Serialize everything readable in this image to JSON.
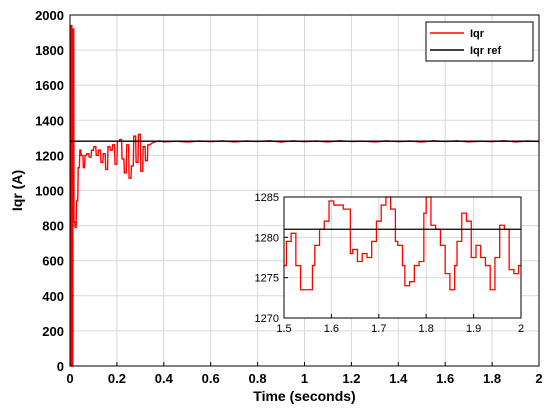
{
  "chart_data": [
    {
      "type": "line",
      "title": "",
      "xlabel": "Time (seconds)",
      "ylabel": "Iqr (A)",
      "xlim": [
        0,
        2
      ],
      "ylim": [
        0,
        2000
      ],
      "xticks": [
        "0",
        "0.2",
        "0.4",
        "0.6",
        "0.8",
        "1",
        "1.2",
        "1.4",
        "1.6",
        "1.8",
        "2"
      ],
      "yticks": [
        "0",
        "200",
        "400",
        "600",
        "800",
        "1000",
        "1200",
        "1400",
        "1600",
        "1800",
        "2000"
      ],
      "grid": true,
      "legend_position": "top-right",
      "series": [
        {
          "name": "Iqr",
          "color": "#ff0000",
          "x": [
            0.0,
            0.003,
            0.004,
            0.008,
            0.009,
            0.012,
            0.013,
            0.016,
            0.017,
            0.021,
            0.022,
            0.026,
            0.028,
            0.033,
            0.035,
            0.04,
            0.042,
            0.046,
            0.048,
            0.055,
            0.057,
            0.062,
            0.064,
            0.07,
            0.072,
            0.08,
            0.082,
            0.09,
            0.092,
            0.1,
            0.102,
            0.11,
            0.112,
            0.12,
            0.122,
            0.13,
            0.132,
            0.14,
            0.142,
            0.15,
            0.152,
            0.16,
            0.162,
            0.17,
            0.172,
            0.18,
            0.182,
            0.19,
            0.192,
            0.2,
            0.202,
            0.21,
            0.212,
            0.22,
            0.222,
            0.23,
            0.232,
            0.24,
            0.242,
            0.25,
            0.252,
            0.26,
            0.262,
            0.27,
            0.272,
            0.28,
            0.282,
            0.29,
            0.292,
            0.3,
            0.302,
            0.31,
            0.312,
            0.32,
            0.322,
            0.33,
            0.332,
            0.34,
            0.35,
            0.36,
            0.38,
            0.4,
            0.45,
            0.5,
            0.55,
            0.6,
            0.65,
            0.7,
            0.75,
            0.8,
            0.85,
            0.9,
            0.95,
            1.0,
            1.05,
            1.1,
            1.15,
            1.2,
            1.25,
            1.3,
            1.35,
            1.4,
            1.45,
            1.5,
            1.55,
            1.6,
            1.65,
            1.7,
            1.75,
            1.8,
            1.85,
            1.9,
            1.95,
            2.0
          ],
          "y": [
            0,
            0,
            1940,
            1940,
            0,
            0,
            1920,
            1920,
            820,
            820,
            790,
            790,
            940,
            940,
            1130,
            1130,
            1230,
            1230,
            1200,
            1200,
            1130,
            1130,
            1200,
            1200,
            1210,
            1210,
            1190,
            1190,
            1230,
            1230,
            1250,
            1250,
            1200,
            1200,
            1230,
            1230,
            1160,
            1160,
            1210,
            1210,
            1120,
            1120,
            1250,
            1250,
            1230,
            1230,
            1260,
            1260,
            1150,
            1150,
            1280,
            1280,
            1290,
            1290,
            1180,
            1180,
            1100,
            1100,
            1260,
            1260,
            1070,
            1070,
            1140,
            1140,
            1310,
            1310,
            1160,
            1160,
            1320,
            1320,
            1110,
            1110,
            1250,
            1250,
            1170,
            1170,
            1260,
            1260,
            1270,
            1276,
            1283,
            1277,
            1281,
            1276,
            1282,
            1278,
            1283,
            1277,
            1282,
            1279,
            1284,
            1276,
            1283,
            1278,
            1282,
            1277,
            1284,
            1279,
            1281,
            1277,
            1283,
            1278,
            1282,
            1276,
            1284,
            1279,
            1283,
            1277,
            1281,
            1278,
            1284,
            1277,
            1282,
            1279
          ]
        },
        {
          "name": "Iqr ref",
          "color": "#000000",
          "x": [
            0,
            2
          ],
          "y": [
            1281,
            1281
          ]
        }
      ]
    },
    {
      "type": "line",
      "title": "",
      "xlabel": "",
      "ylabel": "",
      "xlim": [
        1.5,
        2
      ],
      "ylim": [
        1270,
        1285
      ],
      "xticks": [
        "1.5",
        "1.6",
        "1.7",
        "1.8",
        "1.9",
        "2"
      ],
      "yticks": [
        "1270",
        "1275",
        "1280",
        "1285"
      ],
      "grid": true,
      "series": [
        {
          "name": "Iqr",
          "color": "#ff0000",
          "x": [
            1.5,
            1.505,
            1.505,
            1.515,
            1.515,
            1.525,
            1.525,
            1.535,
            1.535,
            1.545,
            1.545,
            1.56,
            1.56,
            1.565,
            1.565,
            1.575,
            1.575,
            1.585,
            1.585,
            1.595,
            1.595,
            1.605,
            1.605,
            1.625,
            1.625,
            1.64,
            1.64,
            1.645,
            1.645,
            1.655,
            1.655,
            1.665,
            1.665,
            1.675,
            1.675,
            1.685,
            1.685,
            1.695,
            1.695,
            1.705,
            1.705,
            1.715,
            1.715,
            1.725,
            1.725,
            1.735,
            1.735,
            1.74,
            1.74,
            1.75,
            1.75,
            1.755,
            1.755,
            1.765,
            1.765,
            1.775,
            1.775,
            1.785,
            1.785,
            1.795,
            1.795,
            1.8,
            1.8,
            1.81,
            1.81,
            1.82,
            1.82,
            1.83,
            1.83,
            1.84,
            1.84,
            1.85,
            1.85,
            1.86,
            1.86,
            1.865,
            1.865,
            1.875,
            1.875,
            1.885,
            1.885,
            1.895,
            1.895,
            1.905,
            1.905,
            1.915,
            1.915,
            1.925,
            1.925,
            1.935,
            1.935,
            1.945,
            1.945,
            1.955,
            1.955,
            1.965,
            1.965,
            1.975,
            1.975,
            1.985,
            1.985,
            1.995,
            1.995,
            2.0
          ],
          "y": [
            1276.5,
            1276.5,
            1279.5,
            1279.5,
            1280.5,
            1280.5,
            1276.5,
            1276.5,
            1273.5,
            1273.5,
            1273.5,
            1273.5,
            1276.5,
            1276.5,
            1279,
            1279,
            1281,
            1281,
            1282,
            1282,
            1284.5,
            1284.5,
            1284,
            1284,
            1283.5,
            1283.5,
            1278,
            1278,
            1278.5,
            1278.5,
            1277,
            1277,
            1278,
            1278,
            1277.5,
            1277.5,
            1279.5,
            1279.5,
            1282,
            1282,
            1284,
            1284,
            1285,
            1285,
            1283.5,
            1283.5,
            1279.5,
            1279.5,
            1279,
            1279,
            1276.5,
            1276.5,
            1274,
            1274,
            1274.5,
            1274.5,
            1276.5,
            1276.5,
            1277,
            1277,
            1283,
            1283,
            1285,
            1285,
            1281.5,
            1281.5,
            1281,
            1281,
            1279,
            1279,
            1275.5,
            1275.5,
            1273.5,
            1273.5,
            1276.5,
            1276.5,
            1279.5,
            1279.5,
            1283,
            1283,
            1282,
            1282,
            1277.5,
            1277.5,
            1279,
            1279,
            1277.5,
            1277.5,
            1276.5,
            1276.5,
            1273.5,
            1273.5,
            1277.5,
            1277.5,
            1281.5,
            1281.5,
            1281,
            1281,
            1276,
            1276,
            1275.5,
            1275.5,
            1276.5,
            1276.5
          ]
        },
        {
          "name": "Iqr ref",
          "color": "#000000",
          "x": [
            1.5,
            2.0
          ],
          "y": [
            1281,
            1281
          ]
        }
      ]
    }
  ]
}
